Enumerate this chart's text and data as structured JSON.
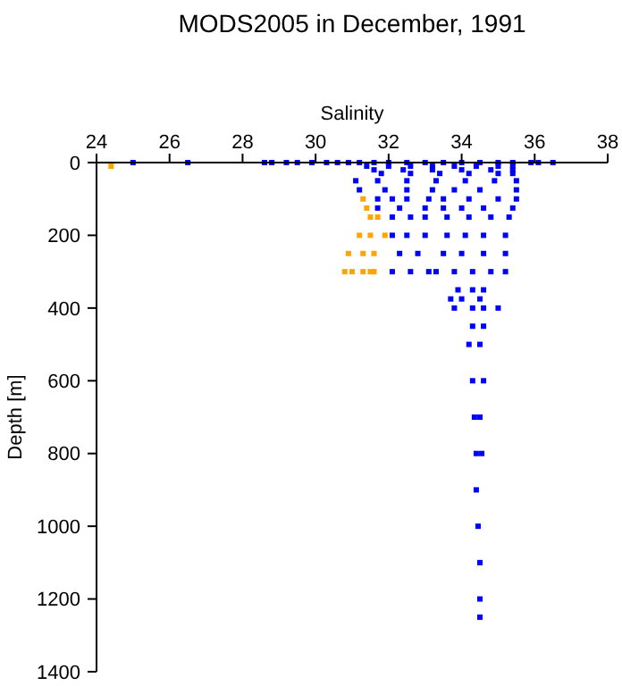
{
  "chart_data": {
    "type": "scatter",
    "title": "MODS2005 in December, 1991",
    "xlabel": "Salinity",
    "ylabel": "Depth [m]",
    "xlim": [
      24,
      38
    ],
    "xticks": [
      24,
      26,
      28,
      30,
      32,
      34,
      36,
      38
    ],
    "ylim": [
      1400,
      0
    ],
    "yticks": [
      0,
      200,
      400,
      600,
      800,
      1000,
      1200,
      1400
    ],
    "grid": false,
    "marker": "square",
    "series": [
      {
        "color": "#0000ff",
        "x": [
          25,
          26.5,
          28.6,
          28.8,
          29.2,
          29.5,
          29.9,
          30.3,
          30.6,
          30.9,
          31.2,
          31.6,
          32,
          32.5,
          33,
          33.5,
          34,
          34.5,
          35,
          35.4,
          35.9,
          36.1,
          36.5,
          31.4,
          32,
          32.6,
          33.2,
          33.8,
          34.4,
          35,
          35.4,
          31.6,
          32.4,
          33.2,
          34,
          34.8,
          35.4,
          31.8,
          32.6,
          33.4,
          34.2,
          35,
          35.4,
          31.1,
          31.7,
          32.5,
          33.3,
          34.1,
          34.9,
          35.5,
          31.2,
          31.9,
          32.5,
          33.2,
          33.8,
          34.5,
          35.5,
          31.7,
          32.1,
          32.5,
          33.1,
          33.5,
          34.2,
          35,
          35.5,
          31.7,
          32.3,
          33,
          33.5,
          34,
          34.6,
          35.4,
          32.1,
          32.6,
          33,
          33.6,
          34.2,
          34.8,
          35.3,
          32.1,
          32.5,
          33,
          33.6,
          34.1,
          34.6,
          35.2,
          32.3,
          32.8,
          33.5,
          34,
          34.6,
          35.2,
          32.1,
          32.6,
          33.1,
          33.3,
          33.8,
          34.3,
          34.8,
          35.2,
          33.9,
          34.3,
          34.6,
          33.7,
          34,
          34.5,
          33.8,
          34.3,
          34.6,
          35,
          34.3,
          34.6,
          34.2,
          34.5,
          34.3,
          34.6,
          34.35,
          34.5,
          34.4,
          34.55,
          34.4,
          34.45,
          34.5,
          34.5,
          34.5
        ],
        "values": [
          0,
          0,
          0,
          0,
          0,
          0,
          0,
          0,
          0,
          0,
          0,
          0,
          0,
          0,
          0,
          0,
          0,
          0,
          0,
          0,
          0,
          0,
          0,
          10,
          10,
          10,
          10,
          10,
          10,
          10,
          10,
          20,
          20,
          20,
          20,
          20,
          20,
          30,
          30,
          30,
          30,
          30,
          30,
          50,
          50,
          50,
          50,
          50,
          50,
          50,
          75,
          75,
          75,
          75,
          75,
          75,
          75,
          100,
          100,
          100,
          100,
          100,
          100,
          100,
          100,
          125,
          125,
          125,
          125,
          125,
          125,
          125,
          150,
          150,
          150,
          150,
          150,
          150,
          150,
          200,
          200,
          200,
          200,
          200,
          200,
          200,
          250,
          250,
          250,
          250,
          250,
          250,
          300,
          300,
          300,
          300,
          300,
          300,
          300,
          300,
          350,
          350,
          350,
          375,
          375,
          375,
          400,
          400,
          400,
          400,
          450,
          450,
          500,
          500,
          600,
          600,
          700,
          700,
          800,
          800,
          900,
          1000,
          1100,
          1200,
          1250
        ]
      },
      {
        "color": "#ffa500",
        "x": [
          24.4,
          31.3,
          31.4,
          31.5,
          31.7,
          31.2,
          31.5,
          31.9,
          30.9,
          31.3,
          31.6,
          30.8,
          31,
          31.3,
          31.5,
          31.6
        ],
        "values": [
          10,
          100,
          125,
          150,
          150,
          200,
          200,
          200,
          250,
          250,
          250,
          300,
          300,
          300,
          300,
          300
        ]
      }
    ]
  }
}
